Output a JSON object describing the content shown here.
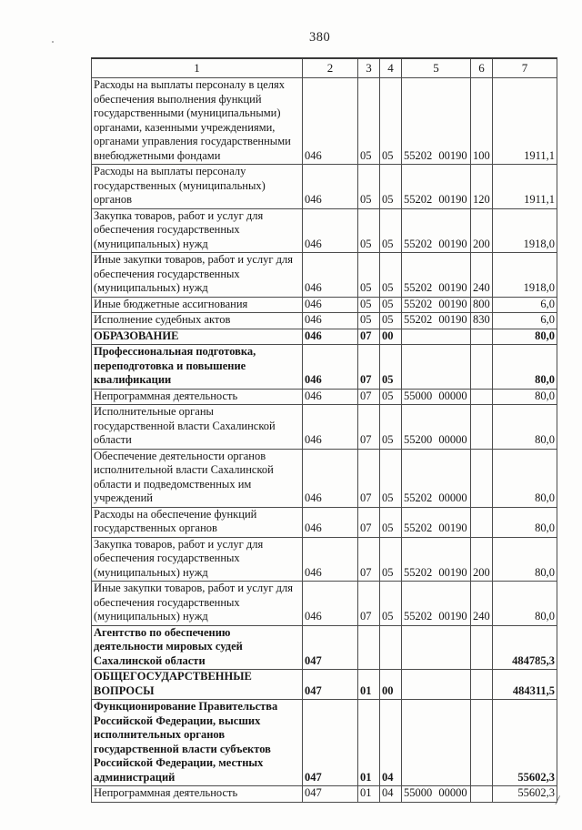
{
  "page": {
    "number": "380"
  },
  "artifacts": {
    "corner_mark": "/"
  },
  "table": {
    "headers": [
      "1",
      "2",
      "3",
      "4",
      "5",
      "6",
      "7"
    ],
    "rows": [
      {
        "bold": false,
        "cells": [
          "Расходы на выплаты персоналу в целях\nобеспечения выполнения функций\nгосударственными (муниципальными)\nорганами, казенными учреждениями,\nорганами управления государственными\nвнебюджетными фондами",
          "046",
          "05",
          "05",
          "55202 00190",
          "100",
          "1911,1"
        ]
      },
      {
        "bold": false,
        "cells": [
          "Расходы на выплаты персоналу\nгосударственных (муниципальных)\nорганов",
          "046",
          "05",
          "05",
          "55202 00190",
          "120",
          "1911,1"
        ]
      },
      {
        "bold": false,
        "cells": [
          "Закупка товаров, работ и услуг для\nобеспечения государственных\n(муниципальных) нужд",
          "046",
          "05",
          "05",
          "55202 00190",
          "200",
          "1918,0"
        ]
      },
      {
        "bold": false,
        "cells": [
          "Иные закупки товаров, работ и услуг для\nобеспечения государственных\n(муниципальных) нужд",
          "046",
          "05",
          "05",
          "55202 00190",
          "240",
          "1918,0"
        ]
      },
      {
        "bold": false,
        "cells": [
          "Иные бюджетные ассигнования",
          "046",
          "05",
          "05",
          "55202 00190",
          "800",
          "6,0"
        ]
      },
      {
        "bold": false,
        "cells": [
          "Исполнение судебных актов",
          "046",
          "05",
          "05",
          "55202 00190",
          "830",
          "6,0"
        ]
      },
      {
        "bold": true,
        "cells": [
          "ОБРАЗОВАНИЕ",
          "046",
          "07",
          "00",
          "",
          "",
          "80,0"
        ]
      },
      {
        "bold": true,
        "cells": [
          "Профессиональная подготовка,\nпереподготовка и повышение\nквалификации",
          "046",
          "07",
          "05",
          "",
          "",
          "80,0"
        ]
      },
      {
        "bold": false,
        "cells": [
          "Непрограммная деятельность",
          "046",
          "07",
          "05",
          "55000 00000",
          "",
          "80,0"
        ]
      },
      {
        "bold": false,
        "cells": [
          "Исполнительные органы\nгосударственной власти Сахалинской\nобласти",
          "046",
          "07",
          "05",
          "55200 00000",
          "",
          "80,0"
        ]
      },
      {
        "bold": false,
        "cells": [
          "Обеспечение деятельности органов\nисполнительной власти Сахалинской\nобласти и подведомственных им\nучреждений",
          "046",
          "07",
          "05",
          "55202 00000",
          "",
          "80,0"
        ]
      },
      {
        "bold": false,
        "cells": [
          "Расходы на обеспечение функций\nгосударственных органов",
          "046",
          "07",
          "05",
          "55202 00190",
          "",
          "80,0"
        ]
      },
      {
        "bold": false,
        "cells": [
          "Закупка товаров, работ и услуг для\nобеспечения государственных\n(муниципальных) нужд",
          "046",
          "07",
          "05",
          "55202 00190",
          "200",
          "80,0"
        ]
      },
      {
        "bold": false,
        "cells": [
          "Иные закупки товаров, работ и услуг для\nобеспечения государственных\n(муниципальных) нужд",
          "046",
          "07",
          "05",
          "55202 00190",
          "240",
          "80,0"
        ]
      },
      {
        "bold": true,
        "cells": [
          "Агентство по обеспечению\nдеятельности мировых судей\nСахалинской области",
          "047",
          "",
          "",
          "",
          "",
          "484785,3"
        ]
      },
      {
        "bold": true,
        "cells": [
          "ОБЩЕГОСУДАРСТВЕННЫЕ\nВОПРОСЫ",
          "047",
          "01",
          "00",
          "",
          "",
          "484311,5"
        ]
      },
      {
        "bold": true,
        "cells": [
          "Функционирование Правительства\nРоссийской Федерации, высших\nисполнительных органов\nгосударственной власти субъектов\nРоссийской Федерации, местных\nадминистраций",
          "047",
          "01",
          "04",
          "",
          "",
          "55602,3"
        ]
      },
      {
        "bold": false,
        "cells": [
          "Непрограммная деятельность",
          "047",
          "01",
          "04",
          "55000 00000",
          "",
          "55602,3"
        ]
      }
    ]
  }
}
